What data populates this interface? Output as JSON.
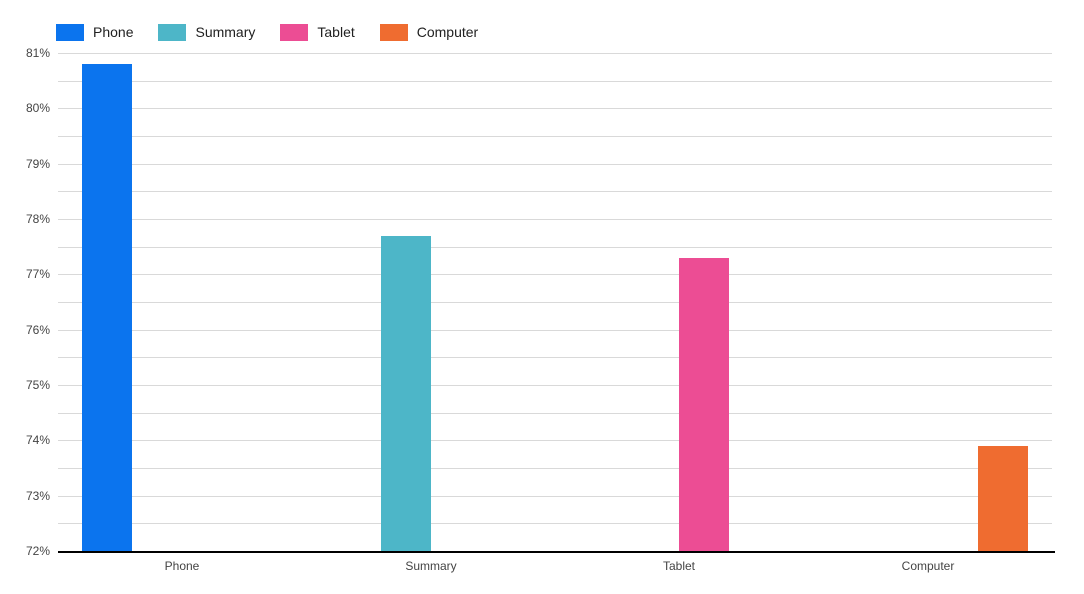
{
  "chart_data": {
    "type": "bar",
    "title": "",
    "categories": [
      "Phone",
      "Summary",
      "Tablet",
      "Computer"
    ],
    "series": [
      {
        "name": "Phone",
        "color": "#0b74ee",
        "values": [
          80.8,
          null,
          null,
          null
        ]
      },
      {
        "name": "Summary",
        "color": "#4db6c8",
        "values": [
          null,
          77.7,
          null,
          null
        ]
      },
      {
        "name": "Tablet",
        "color": "#ec4d94",
        "values": [
          null,
          null,
          77.3,
          null
        ]
      },
      {
        "name": "Computer",
        "color": "#ef6c30",
        "values": [
          null,
          null,
          null,
          73.9
        ]
      }
    ],
    "xlabel": "",
    "ylabel": "",
    "ylim": [
      72,
      81
    ],
    "y_major_step": 1,
    "y_minor_step": 0.5,
    "y_tick_labels": [
      "81%",
      "80%",
      "79%",
      "78%",
      "77%",
      "76%",
      "75%",
      "74%",
      "73%",
      "72%"
    ],
    "grid": true,
    "legend_position": "top-left",
    "colors": {
      "background": "#ffffff",
      "gridline": "#d9d9d9",
      "axis_line": "#000000",
      "tick_label": "#444444",
      "legend_text": "#212121"
    }
  }
}
